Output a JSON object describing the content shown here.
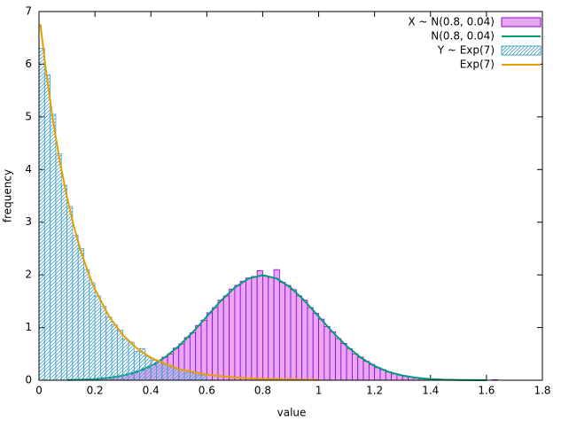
{
  "chart_data": {
    "type": "histogram",
    "xlabel": "value",
    "ylabel": "frequency",
    "xlim": [
      0,
      1.8
    ],
    "xticks": [
      0,
      0.2,
      0.4,
      0.6,
      0.8,
      1,
      1.2,
      1.4,
      1.6,
      1.8
    ],
    "ylim": [
      0,
      7
    ],
    "yticks": [
      0,
      1,
      2,
      3,
      4,
      5,
      6,
      7
    ],
    "grid": false,
    "legend": "top right",
    "series": [
      {
        "name": "X ~ N(0.8, 0.04)",
        "type": "histogram",
        "color": "#9400d3",
        "fill": "solid",
        "fill_color": "#e9a6f3",
        "bins": [
          0.2,
          0.22,
          0.24,
          0.26,
          0.28,
          0.3,
          0.32,
          0.34,
          0.36,
          0.38,
          0.4,
          0.42,
          0.44,
          0.46,
          0.48,
          0.5,
          0.52,
          0.54,
          0.56,
          0.58,
          0.6,
          0.62,
          0.64,
          0.66,
          0.68,
          0.7,
          0.72,
          0.74,
          0.76,
          0.78,
          0.8,
          0.82,
          0.84,
          0.86,
          0.88,
          0.9,
          0.92,
          0.94,
          0.96,
          0.98,
          1,
          1.02,
          1.04,
          1.06,
          1.08,
          1.1,
          1.12,
          1.14,
          1.16,
          1.18,
          1.2,
          1.22,
          1.24,
          1.26,
          1.28,
          1.3,
          1.32,
          1.34,
          1.36,
          1.38,
          1.4,
          1.42,
          1.44,
          1.46,
          1.48,
          1.5,
          1.52,
          1.54,
          1.56,
          1.58,
          1.6,
          1.62,
          1.64
        ],
        "values": [
          0.03,
          0.03,
          0.05,
          0.06,
          0.08,
          0.1,
          0.12,
          0.17,
          0.19,
          0.25,
          0.3,
          0.35,
          0.44,
          0.5,
          0.61,
          0.69,
          0.81,
          0.9,
          1.04,
          1.14,
          1.28,
          1.38,
          1.52,
          1.6,
          1.73,
          1.8,
          1.88,
          1.94,
          1.97,
          2.08,
          1.98,
          1.95,
          2.1,
          1.86,
          1.8,
          1.72,
          1.6,
          1.52,
          1.38,
          1.27,
          1.16,
          1.02,
          0.92,
          0.79,
          0.7,
          0.6,
          0.5,
          0.44,
          0.36,
          0.3,
          0.24,
          0.2,
          0.16,
          0.12,
          0.1,
          0.08,
          0.06,
          0.05,
          0.03,
          0.03,
          0.02,
          0.01,
          0.01,
          0.01,
          0.01,
          0,
          0,
          0.01,
          0,
          0,
          0,
          0.01
        ]
      },
      {
        "name": "N(0.8, 0.04)",
        "type": "line",
        "color": "#009e73",
        "x": [
          0.1,
          0.15,
          0.2,
          0.25,
          0.3,
          0.35,
          0.4,
          0.45,
          0.5,
          0.55,
          0.6,
          0.65,
          0.7,
          0.75,
          0.8,
          0.85,
          0.9,
          0.95,
          1,
          1.05,
          1.1,
          1.15,
          1.2,
          1.25,
          1.3,
          1.35,
          1.4,
          1.45,
          1.5,
          1.55,
          1.6
        ],
        "values": [
          0.004,
          0.01,
          0.022,
          0.046,
          0.088,
          0.159,
          0.27,
          0.432,
          0.648,
          0.913,
          1.21,
          1.506,
          1.76,
          1.933,
          1.995,
          1.933,
          1.76,
          1.506,
          1.21,
          0.913,
          0.648,
          0.432,
          0.27,
          0.159,
          0.088,
          0.046,
          0.022,
          0.01,
          0.004,
          0.002,
          0.001
        ]
      },
      {
        "name": "Y ~ Exp(7)",
        "type": "histogram",
        "color": "#4aa3c8",
        "fill": "hatch",
        "bins": [
          0,
          0.02,
          0.04,
          0.06,
          0.08,
          0.1,
          0.12,
          0.14,
          0.16,
          0.18,
          0.2,
          0.22,
          0.24,
          0.26,
          0.28,
          0.3,
          0.32,
          0.34,
          0.36,
          0.38,
          0.4,
          0.42,
          0.44,
          0.46,
          0.48,
          0.5,
          0.52,
          0.54,
          0.56,
          0.58,
          0.6
        ],
        "values": [
          6.3,
          5.8,
          5.05,
          4.3,
          3.7,
          3.3,
          2.75,
          2.5,
          2.1,
          1.85,
          1.6,
          1.4,
          1.2,
          1.05,
          0.95,
          0.78,
          0.72,
          0.55,
          0.6,
          0.45,
          0.38,
          0.35,
          0.3,
          0.25,
          0.22,
          0.2,
          0.15,
          0.14,
          0.1,
          0.1
        ]
      },
      {
        "name": "Exp(7)",
        "type": "line",
        "color": "#e69f00",
        "x": [
          0.005,
          0.025,
          0.05,
          0.075,
          0.1,
          0.125,
          0.15,
          0.175,
          0.2,
          0.25,
          0.3,
          0.35,
          0.4,
          0.5,
          0.6,
          0.7,
          0.8,
          1
        ],
        "values": [
          6.759,
          5.877,
          4.933,
          4.141,
          3.476,
          2.918,
          2.449,
          2.056,
          1.726,
          1.216,
          0.857,
          0.604,
          0.426,
          0.211,
          0.105,
          0.052,
          0.026,
          0.006
        ]
      }
    ]
  }
}
